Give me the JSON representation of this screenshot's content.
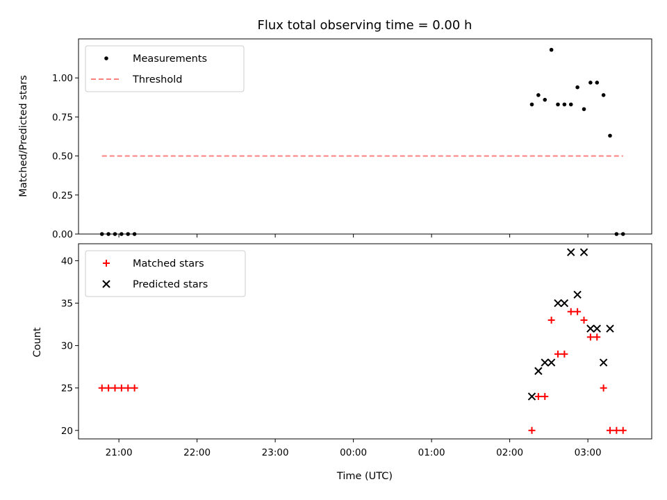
{
  "chart_data": [
    {
      "type": "scatter",
      "title": "Flux total observing time = 0.00 h",
      "xlabel": "",
      "ylabel": "Matched/Predicted stars",
      "ylim": [
        0.0,
        1.25
      ],
      "yticks": [
        "0.00",
        "0.25",
        "0.50",
        "0.75",
        "1.00"
      ],
      "ytick_values": [
        0.0,
        0.25,
        0.5,
        0.75,
        1.0
      ],
      "legend_position": "top-left",
      "series": [
        {
          "name": "Measurements",
          "marker": "dot",
          "color": "#000000",
          "points": [
            {
              "x": "20:47",
              "y": 0.0
            },
            {
              "x": "20:52",
              "y": 0.0
            },
            {
              "x": "20:57",
              "y": 0.0
            },
            {
              "x": "21:02",
              "y": 0.0
            },
            {
              "x": "21:07",
              "y": 0.0
            },
            {
              "x": "21:12",
              "y": 0.0
            },
            {
              "x": "02:17",
              "y": 0.83
            },
            {
              "x": "02:22",
              "y": 0.89
            },
            {
              "x": "02:27",
              "y": 0.86
            },
            {
              "x": "02:32",
              "y": 1.18
            },
            {
              "x": "02:37",
              "y": 0.83
            },
            {
              "x": "02:42",
              "y": 0.83
            },
            {
              "x": "02:47",
              "y": 0.83
            },
            {
              "x": "02:52",
              "y": 0.94
            },
            {
              "x": "02:57",
              "y": 0.8
            },
            {
              "x": "03:02",
              "y": 0.97
            },
            {
              "x": "03:07",
              "y": 0.97
            },
            {
              "x": "03:12",
              "y": 0.89
            },
            {
              "x": "03:17",
              "y": 0.63
            },
            {
              "x": "03:22",
              "y": 0.0
            },
            {
              "x": "03:27",
              "y": 0.0
            }
          ]
        },
        {
          "name": "Threshold",
          "style": "dashed-line",
          "color": "#ff7f7f",
          "points": [
            {
              "x": "20:47",
              "y": 0.5
            },
            {
              "x": "03:27",
              "y": 0.5
            }
          ]
        }
      ]
    },
    {
      "type": "scatter",
      "title": "",
      "xlabel": "Time (UTC)",
      "ylabel": "Count",
      "ylim": [
        19,
        42
      ],
      "yticks": [
        "20",
        "25",
        "30",
        "35",
        "40"
      ],
      "ytick_values": [
        20,
        25,
        30,
        35,
        40
      ],
      "xticks": [
        "21:00",
        "22:00",
        "23:00",
        "00:00",
        "01:00",
        "02:00",
        "03:00"
      ],
      "xtick_values": [
        "21:00",
        "22:00",
        "23:00",
        "00:00",
        "01:00",
        "02:00",
        "03:00"
      ],
      "xlim": [
        "20:29",
        "03:49"
      ],
      "legend_position": "top-left",
      "series": [
        {
          "name": "Matched stars",
          "marker": "plus",
          "color": "#ff0000",
          "points": [
            {
              "x": "20:47",
              "y": 25
            },
            {
              "x": "20:52",
              "y": 25
            },
            {
              "x": "20:57",
              "y": 25
            },
            {
              "x": "21:02",
              "y": 25
            },
            {
              "x": "21:07",
              "y": 25
            },
            {
              "x": "21:12",
              "y": 25
            },
            {
              "x": "02:17",
              "y": 20
            },
            {
              "x": "02:22",
              "y": 24
            },
            {
              "x": "02:27",
              "y": 24
            },
            {
              "x": "02:32",
              "y": 33
            },
            {
              "x": "02:37",
              "y": 29
            },
            {
              "x": "02:42",
              "y": 29
            },
            {
              "x": "02:47",
              "y": 34
            },
            {
              "x": "02:52",
              "y": 34
            },
            {
              "x": "02:57",
              "y": 33
            },
            {
              "x": "03:02",
              "y": 31
            },
            {
              "x": "03:07",
              "y": 31
            },
            {
              "x": "03:12",
              "y": 25
            },
            {
              "x": "03:17",
              "y": 20
            },
            {
              "x": "03:22",
              "y": 20
            },
            {
              "x": "03:27",
              "y": 20
            }
          ]
        },
        {
          "name": "Predicted stars",
          "marker": "x",
          "color": "#000000",
          "points": [
            {
              "x": "02:17",
              "y": 24
            },
            {
              "x": "02:22",
              "y": 27
            },
            {
              "x": "02:27",
              "y": 28
            },
            {
              "x": "02:32",
              "y": 28
            },
            {
              "x": "02:37",
              "y": 35
            },
            {
              "x": "02:42",
              "y": 35
            },
            {
              "x": "02:47",
              "y": 41
            },
            {
              "x": "02:52",
              "y": 36
            },
            {
              "x": "02:57",
              "y": 41
            },
            {
              "x": "03:02",
              "y": 32
            },
            {
              "x": "03:07",
              "y": 32
            },
            {
              "x": "03:12",
              "y": 28
            },
            {
              "x": "03:17",
              "y": 32
            }
          ]
        }
      ]
    }
  ]
}
